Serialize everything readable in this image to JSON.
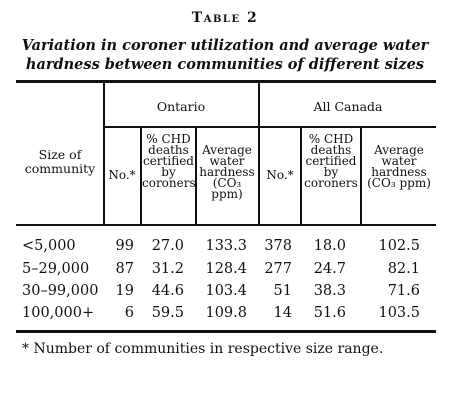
{
  "table": {
    "label": "Table 2",
    "caption_line1": "Variation in coroner utilization and average water",
    "caption_line2": "hardness between communities of different sizes",
    "size_header": "Size of community",
    "groups": [
      "Ontario",
      "All Canada"
    ],
    "sub_headers": {
      "no": "No.*",
      "chd": "% CHD deaths certified by coroners",
      "hardness": "Average water hardness (CO₃ ppm)"
    },
    "rows": [
      {
        "size": "<5,000",
        "ont_no": "99",
        "ont_chd": "27.0",
        "ont_hard": "133.3",
        "can_no": "378",
        "can_chd": "18.0",
        "can_hard": "102.5"
      },
      {
        "size": "5–29,000",
        "ont_no": "87",
        "ont_chd": "31.2",
        "ont_hard": "128.4",
        "can_no": "277",
        "can_chd": "24.7",
        "can_hard": "82.1"
      },
      {
        "size": "30–99,000",
        "ont_no": "19",
        "ont_chd": "44.6",
        "ont_hard": "103.4",
        "can_no": "51",
        "can_chd": "38.3",
        "can_hard": "71.6"
      },
      {
        "size": "100,000+",
        "ont_no": "6",
        "ont_chd": "59.5",
        "ont_hard": "109.8",
        "can_no": "14",
        "can_chd": "51.6",
        "can_hard": "103.5"
      }
    ],
    "footnote": "* Number of communities in respective size range."
  }
}
